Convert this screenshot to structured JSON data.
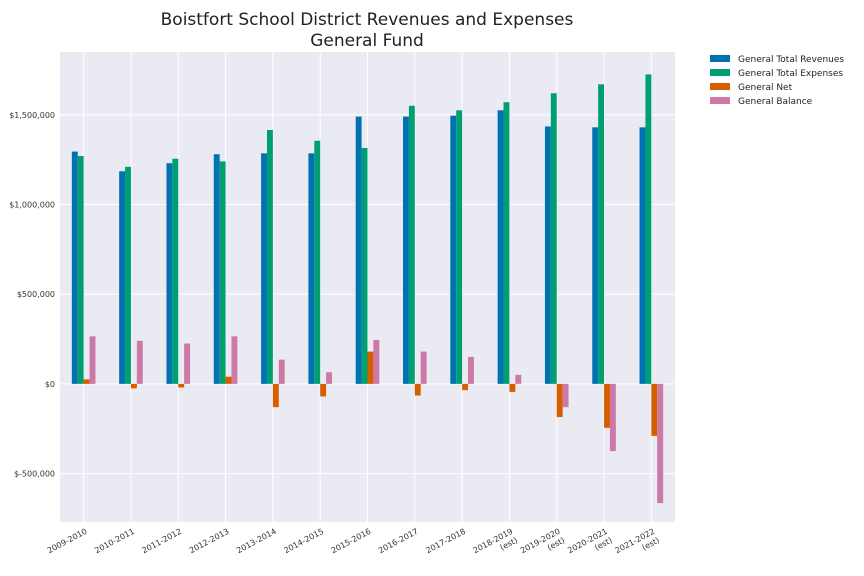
{
  "chart_data": {
    "type": "bar",
    "title": [
      "Boistfort School District Revenues and Expenses",
      "General Fund"
    ],
    "xlabel": "",
    "ylabel": "",
    "categories": [
      [
        "2009-2010"
      ],
      [
        "2010-2011"
      ],
      [
        "2011-2012"
      ],
      [
        "2012-2013"
      ],
      [
        "2013-2014"
      ],
      [
        "2014-2015"
      ],
      [
        "2015-2016"
      ],
      [
        "2016-2017"
      ],
      [
        "2017-2018"
      ],
      [
        "2018-2019",
        "(est)"
      ],
      [
        "2019-2020",
        "(est)"
      ],
      [
        "2020-2021",
        "(est)"
      ],
      [
        "2021-2022",
        "(est)"
      ]
    ],
    "series": [
      {
        "name": "General Total Revenues",
        "color": "#0072b2",
        "values": [
          1295000,
          1185000,
          1230000,
          1280000,
          1285000,
          1285000,
          1490000,
          1490000,
          1495000,
          1525000,
          1435000,
          1430000,
          1430000
        ]
      },
      {
        "name": "General Total Expenses",
        "color": "#009e73",
        "values": [
          1270000,
          1210000,
          1255000,
          1240000,
          1415000,
          1355000,
          1315000,
          1550000,
          1525000,
          1570000,
          1620000,
          1670000,
          1725000
        ]
      },
      {
        "name": "General Net",
        "color": "#d55e00",
        "values": [
          25000,
          -25000,
          -20000,
          40000,
          -130000,
          -70000,
          180000,
          -65000,
          -35000,
          -45000,
          -185000,
          -245000,
          -290000
        ]
      },
      {
        "name": "General Balance",
        "color": "#cc79a7",
        "values": [
          265000,
          240000,
          225000,
          265000,
          135000,
          65000,
          245000,
          180000,
          150000,
          50000,
          -130000,
          -375000,
          -665000
        ]
      }
    ],
    "ylim": [
      -770000,
      1850000
    ],
    "yticks": [
      -500000,
      0,
      500000,
      1000000,
      1500000
    ],
    "ytick_labels": [
      "$-500,000",
      "$0",
      "$500,000",
      "$1,000,000",
      "$1,500,000"
    ],
    "grid": true,
    "legend_position": "outside-top-right",
    "colors": {
      "plot_background": "#eaeaf2",
      "grid": "#ffffff"
    }
  }
}
